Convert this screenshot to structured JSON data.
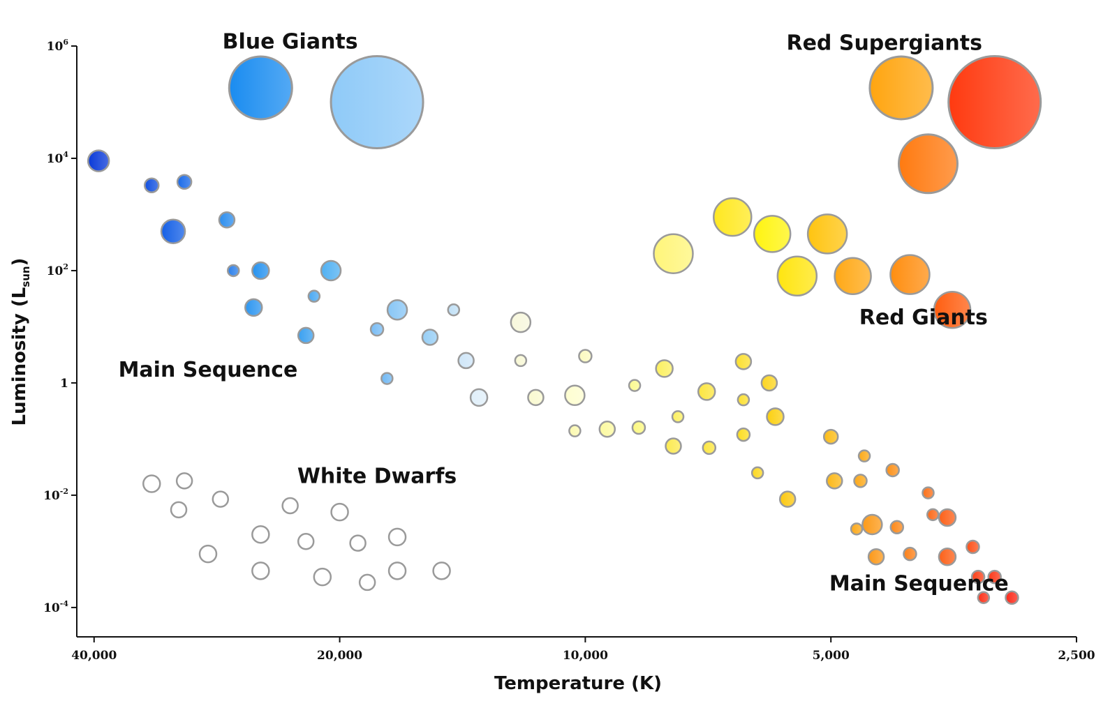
{
  "chart_data": {
    "type": "scatter",
    "title": "",
    "xlabel": "Temperature (K)",
    "ylabel": {
      "main": "Luminosity (L",
      "sub": "sun",
      "close": ")"
    },
    "x_scale": "log-reversed",
    "y_scale": "log",
    "xlim": [
      42000,
      2500
    ],
    "ylim": [
      3e-05,
      1000000
    ],
    "grid": false,
    "x_ticks": [
      {
        "value": 40000,
        "label": "40,000"
      },
      {
        "value": 20000,
        "label": "20,000"
      },
      {
        "value": 10000,
        "label": "10,000"
      },
      {
        "value": 5000,
        "label": "5,000"
      },
      {
        "value": 2500,
        "label": "2,500"
      }
    ],
    "y_ticks": [
      {
        "value": 1000000,
        "base": "10",
        "exp": "6"
      },
      {
        "value": 10000,
        "base": "10",
        "exp": "4"
      },
      {
        "value": 100,
        "base": "10",
        "exp": "2"
      },
      {
        "value": 1,
        "base": "1",
        "exp": ""
      },
      {
        "value": 0.01,
        "base": "10",
        "exp": "-2"
      },
      {
        "value": 0.0001,
        "base": "10",
        "exp": "-4"
      }
    ],
    "group_labels": [
      {
        "text": "Blue Giants",
        "temperature": 23000,
        "luminosity": 900000
      },
      {
        "text": "Red Supergiants",
        "temperature": 4300,
        "luminosity": 850000
      },
      {
        "text": "Main Sequence",
        "temperature": 29000,
        "luminosity": 1.3
      },
      {
        "text": "Red Giants",
        "temperature": 3850,
        "luminosity": 11
      },
      {
        "text": "White Dwarfs",
        "temperature": 18000,
        "luminosity": 0.0165
      },
      {
        "text": "Main Sequence",
        "temperature": 3900,
        "luminosity": 0.0002
      }
    ],
    "colors": {
      "white_dwarf": "#ffffff",
      "outline": "#9a9a9a"
    },
    "series": [
      {
        "name": "Blue Giants",
        "points": [
          {
            "temperature": 25000,
            "luminosity": 180000,
            "size": 45,
            "color": "#1a8cf0"
          },
          {
            "temperature": 18000,
            "luminosity": 100000,
            "size": 66,
            "color": "#8fcaf8"
          }
        ]
      },
      {
        "name": "Red Supergiants",
        "points": [
          {
            "temperature": 4100,
            "luminosity": 180000,
            "size": 45,
            "color": "#ffa510"
          },
          {
            "temperature": 3150,
            "luminosity": 100000,
            "size": 66,
            "color": "#ff3a10"
          },
          {
            "temperature": 3800,
            "luminosity": 8000,
            "size": 42,
            "color": "#ff7a10"
          }
        ]
      },
      {
        "name": "Red Giants",
        "points": [
          {
            "temperature": 7800,
            "luminosity": 200,
            "size": 28,
            "color": "#fff57a"
          },
          {
            "temperature": 6600,
            "luminosity": 900,
            "size": 27,
            "color": "#ffe820"
          },
          {
            "temperature": 5900,
            "luminosity": 450,
            "size": 26,
            "color": "#fff410"
          },
          {
            "temperature": 5050,
            "luminosity": 450,
            "size": 28,
            "color": "#ffc410"
          },
          {
            "temperature": 5500,
            "luminosity": 80,
            "size": 28,
            "color": "#ffe510"
          },
          {
            "temperature": 4700,
            "luminosity": 80,
            "size": 26,
            "color": "#ffa815"
          },
          {
            "temperature": 4000,
            "luminosity": 85,
            "size": 28,
            "color": "#ff8e10"
          },
          {
            "temperature": 3550,
            "luminosity": 20,
            "size": 26,
            "color": "#ff5e10"
          }
        ]
      },
      {
        "name": "Main Sequence",
        "points": [
          {
            "temperature": 39500,
            "luminosity": 9000,
            "size": 15,
            "color": "#0a3ad8"
          },
          {
            "temperature": 34000,
            "luminosity": 3300,
            "size": 10,
            "color": "#1250e0"
          },
          {
            "temperature": 31000,
            "luminosity": 3800,
            "size": 10,
            "color": "#1a6ae8"
          },
          {
            "temperature": 32000,
            "luminosity": 500,
            "size": 17,
            "color": "#1560e6"
          },
          {
            "temperature": 27500,
            "luminosity": 800,
            "size": 11,
            "color": "#2d8eee"
          },
          {
            "temperature": 27000,
            "luminosity": 100,
            "size": 8,
            "color": "#2c80ea"
          },
          {
            "temperature": 25000,
            "luminosity": 100,
            "size": 12,
            "color": "#2592ef"
          },
          {
            "temperature": 20500,
            "luminosity": 100,
            "size": 14,
            "color": "#50b0f2"
          },
          {
            "temperature": 25500,
            "luminosity": 22,
            "size": 12,
            "color": "#2d96f0"
          },
          {
            "temperature": 21500,
            "luminosity": 35,
            "size": 8,
            "color": "#4aa8f2"
          },
          {
            "temperature": 22000,
            "luminosity": 7,
            "size": 11,
            "color": "#3aa0f0"
          },
          {
            "temperature": 17000,
            "luminosity": 20,
            "size": 14,
            "color": "#88c6f5"
          },
          {
            "temperature": 18000,
            "luminosity": 9,
            "size": 9,
            "color": "#78bcf5"
          },
          {
            "temperature": 15500,
            "luminosity": 6.5,
            "size": 11,
            "color": "#96cef5"
          },
          {
            "temperature": 17500,
            "luminosity": 1.2,
            "size": 8,
            "color": "#70b8f4"
          },
          {
            "temperature": 14500,
            "luminosity": 20,
            "size": 8,
            "color": "#c0e0f6"
          },
          {
            "temperature": 14000,
            "luminosity": 2.5,
            "size": 11,
            "color": "#cfe6f8"
          },
          {
            "temperature": 13500,
            "luminosity": 0.55,
            "size": 12,
            "color": "#e0eff9"
          },
          {
            "temperature": 12000,
            "luminosity": 12,
            "size": 14,
            "color": "#f7f7dc"
          },
          {
            "temperature": 12000,
            "luminosity": 2.5,
            "size": 8,
            "color": "#f8f8d5"
          },
          {
            "temperature": 11500,
            "luminosity": 0.55,
            "size": 11,
            "color": "#fafad0"
          },
          {
            "temperature": 10000,
            "luminosity": 3,
            "size": 9,
            "color": "#fcfac0"
          },
          {
            "temperature": 10300,
            "luminosity": 0.6,
            "size": 14,
            "color": "#fefed0"
          },
          {
            "temperature": 10300,
            "luminosity": 0.14,
            "size": 8,
            "color": "#fcfab0"
          },
          {
            "temperature": 9400,
            "luminosity": 0.15,
            "size": 11,
            "color": "#fcfaa0"
          },
          {
            "temperature": 8700,
            "luminosity": 0.9,
            "size": 8,
            "color": "#fcfa90"
          },
          {
            "temperature": 8600,
            "luminosity": 0.16,
            "size": 9,
            "color": "#fcf880"
          },
          {
            "temperature": 8000,
            "luminosity": 1.8,
            "size": 12,
            "color": "#fcf060"
          },
          {
            "temperature": 7700,
            "luminosity": 0.25,
            "size": 8,
            "color": "#fcf060"
          },
          {
            "temperature": 7800,
            "luminosity": 0.075,
            "size": 11,
            "color": "#fcea50"
          },
          {
            "temperature": 7100,
            "luminosity": 0.7,
            "size": 12,
            "color": "#fce640"
          },
          {
            "temperature": 7050,
            "luminosity": 0.07,
            "size": 9,
            "color": "#fce640"
          },
          {
            "temperature": 6400,
            "luminosity": 2.4,
            "size": 11,
            "color": "#fce030"
          },
          {
            "temperature": 6400,
            "luminosity": 0.5,
            "size": 8,
            "color": "#fce030"
          },
          {
            "temperature": 6400,
            "luminosity": 0.12,
            "size": 9,
            "color": "#fcdd20"
          },
          {
            "temperature": 6150,
            "luminosity": 0.025,
            "size": 8,
            "color": "#fcd820"
          },
          {
            "temperature": 5950,
            "luminosity": 1,
            "size": 11,
            "color": "#fcd520"
          },
          {
            "temperature": 5850,
            "luminosity": 0.25,
            "size": 12,
            "color": "#fcd010"
          },
          {
            "temperature": 5650,
            "luminosity": 0.0085,
            "size": 11,
            "color": "#fcc810"
          },
          {
            "temperature": 5000,
            "luminosity": 0.11,
            "size": 10,
            "color": "#fcbc15"
          },
          {
            "temperature": 4950,
            "luminosity": 0.018,
            "size": 11,
            "color": "#fcb818"
          },
          {
            "temperature": 4550,
            "luminosity": 0.05,
            "size": 8,
            "color": "#fcaa18"
          },
          {
            "temperature": 4600,
            "luminosity": 0.018,
            "size": 9,
            "color": "#fca818"
          },
          {
            "temperature": 4650,
            "luminosity": 0.0025,
            "size": 8,
            "color": "#fca818"
          },
          {
            "temperature": 4450,
            "luminosity": 0.003,
            "size": 14,
            "color": "#fc9a18"
          },
          {
            "temperature": 4400,
            "luminosity": 0.0008,
            "size": 11,
            "color": "#fc9818"
          },
          {
            "temperature": 4200,
            "luminosity": 0.028,
            "size": 9,
            "color": "#fc9018"
          },
          {
            "temperature": 4150,
            "luminosity": 0.0027,
            "size": 9,
            "color": "#fc8818"
          },
          {
            "temperature": 4000,
            "luminosity": 0.0009,
            "size": 9,
            "color": "#fc8018"
          },
          {
            "temperature": 3800,
            "luminosity": 0.011,
            "size": 8,
            "color": "#fc7018"
          },
          {
            "temperature": 3750,
            "luminosity": 0.0045,
            "size": 8,
            "color": "#fc6818"
          },
          {
            "temperature": 3600,
            "luminosity": 0.004,
            "size": 12,
            "color": "#fc6018"
          },
          {
            "temperature": 3600,
            "luminosity": 0.0008,
            "size": 12,
            "color": "#fc6018"
          },
          {
            "temperature": 3350,
            "luminosity": 0.0012,
            "size": 9,
            "color": "#fc5018"
          },
          {
            "temperature": 3300,
            "luminosity": 0.00035,
            "size": 9,
            "color": "#fc4018"
          },
          {
            "temperature": 3150,
            "luminosity": 0.00035,
            "size": 9,
            "color": "#fc3818"
          },
          {
            "temperature": 3250,
            "luminosity": 0.00015,
            "size": 8,
            "color": "#fc3018"
          },
          {
            "temperature": 3000,
            "luminosity": 0.00015,
            "size": 9,
            "color": "#fc2818"
          }
        ]
      },
      {
        "name": "White Dwarfs",
        "points": [
          {
            "temperature": 34000,
            "luminosity": 0.016,
            "size": 12,
            "color": "#ffffff"
          },
          {
            "temperature": 31000,
            "luminosity": 0.018,
            "size": 11,
            "color": "#ffffff"
          },
          {
            "temperature": 31500,
            "luminosity": 0.0055,
            "size": 11,
            "color": "#ffffff"
          },
          {
            "temperature": 28000,
            "luminosity": 0.0085,
            "size": 11,
            "color": "#ffffff"
          },
          {
            "temperature": 25000,
            "luminosity": 0.002,
            "size": 12,
            "color": "#ffffff"
          },
          {
            "temperature": 23000,
            "luminosity": 0.0065,
            "size": 11,
            "color": "#ffffff"
          },
          {
            "temperature": 22000,
            "luminosity": 0.0015,
            "size": 11,
            "color": "#ffffff"
          },
          {
            "temperature": 20000,
            "luminosity": 0.005,
            "size": 12,
            "color": "#ffffff"
          },
          {
            "temperature": 19000,
            "luminosity": 0.0014,
            "size": 11,
            "color": "#ffffff"
          },
          {
            "temperature": 17000,
            "luminosity": 0.0018,
            "size": 12,
            "color": "#ffffff"
          },
          {
            "temperature": 29000,
            "luminosity": 0.0009,
            "size": 12,
            "color": "#ffffff"
          },
          {
            "temperature": 25000,
            "luminosity": 0.00045,
            "size": 12,
            "color": "#ffffff"
          },
          {
            "temperature": 21000,
            "luminosity": 0.00035,
            "size": 12,
            "color": "#ffffff"
          },
          {
            "temperature": 18500,
            "luminosity": 0.00028,
            "size": 11,
            "color": "#ffffff"
          },
          {
            "temperature": 17000,
            "luminosity": 0.00045,
            "size": 12,
            "color": "#ffffff"
          },
          {
            "temperature": 15000,
            "luminosity": 0.00045,
            "size": 12,
            "color": "#ffffff"
          }
        ]
      }
    ]
  }
}
